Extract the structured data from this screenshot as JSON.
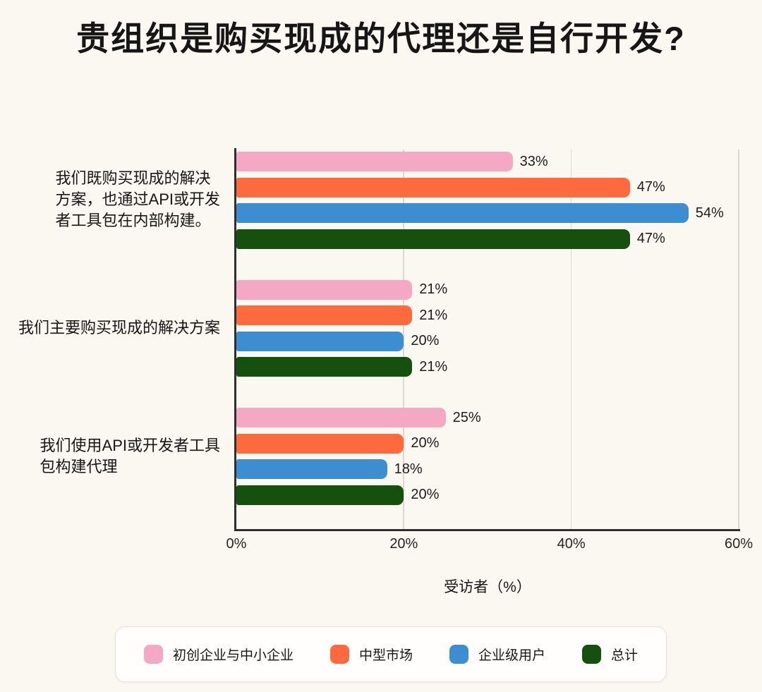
{
  "title": "贵组织是购买现成的代理还是自行开发?",
  "chart_data": {
    "type": "bar",
    "orientation": "horizontal",
    "title": "贵组织是购买现成的代理还是自行开发?",
    "categories": [
      "我们既购买现成的解决\n方案，也通过API或开发\n者工具包在内部构建。",
      "我们主要购买现成的解决方案",
      "我们使用API或开发者工具\n包构建代理"
    ],
    "series": [
      {
        "name": "初创企业与中小企业",
        "color": "#f4a8c4",
        "values": [
          33,
          21,
          25
        ]
      },
      {
        "name": "中型市场",
        "color": "#fc6a3d",
        "values": [
          47,
          21,
          20
        ]
      },
      {
        "name": "企业级用户",
        "color": "#3d8ed1",
        "values": [
          54,
          20,
          18
        ]
      },
      {
        "name": "总计",
        "color": "#15500f",
        "values": [
          47,
          21,
          20
        ]
      }
    ],
    "value_suffix": "%",
    "xlabel": "受访者（%）",
    "x_ticks": [
      "0%",
      "20%",
      "40%",
      "60%"
    ],
    "xlim": [
      0,
      60
    ],
    "grid": "vertical",
    "legend_position": "bottom",
    "colors": {
      "background": "#faf8f1",
      "axis": "#2e2e2e",
      "gridline": "#dbd8cf",
      "legend_border": "#e5e2d8",
      "legend_background": "#fffefc"
    }
  }
}
